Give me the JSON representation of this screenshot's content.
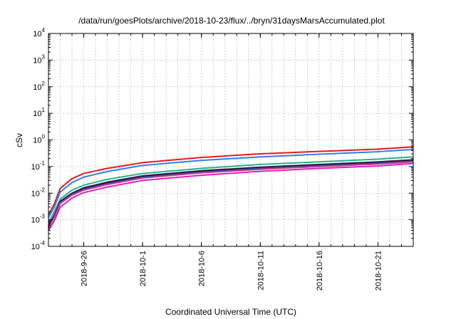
{
  "chart_data": {
    "type": "line",
    "title": "/data/run/goesPlots/archive/2018-10-23/flux/../bryn/31daysMarsAccumulated.plot",
    "xlabel": "Coordinated Universal Time (UTC)",
    "ylabel": "cSv",
    "y_scale": "log",
    "ylim": [
      0.0001,
      10000
    ],
    "xlim": [
      "2018-09-23",
      "2018-10-24"
    ],
    "grid": true,
    "x_ticks": [
      "2018-9-26",
      "2018-10-1",
      "2018-10-6",
      "2018-10-11",
      "2018-10-16",
      "2018-10-21"
    ],
    "y_ticks": [
      {
        "value": 0.0001,
        "base": "10",
        "exp": "-4"
      },
      {
        "value": 0.001,
        "base": "10",
        "exp": "-3"
      },
      {
        "value": 0.01,
        "base": "10",
        "exp": "-2"
      },
      {
        "value": 0.1,
        "base": "10",
        "exp": "-1"
      },
      {
        "value": 1,
        "base": "10",
        "exp": "0"
      },
      {
        "value": 10,
        "base": "10",
        "exp": "1"
      },
      {
        "value": 100,
        "base": "10",
        "exp": "2"
      },
      {
        "value": 1000,
        "base": "10",
        "exp": "3"
      },
      {
        "value": 10000,
        "base": "10",
        "exp": "4"
      }
    ],
    "x": [
      "2018-09-23",
      "2018-09-23T12:00",
      "2018-09-24",
      "2018-09-25",
      "2018-09-26",
      "2018-09-28",
      "2018-10-01",
      "2018-10-06",
      "2018-10-11",
      "2018-10-16",
      "2018-10-21",
      "2018-10-24"
    ],
    "series": [
      {
        "color": "#e41a1c",
        "values": [
          0.0015,
          0.004,
          0.015,
          0.035,
          0.055,
          0.085,
          0.14,
          0.22,
          0.3,
          0.37,
          0.45,
          0.55
        ]
      },
      {
        "color": "#377eeb",
        "values": [
          0.0012,
          0.003,
          0.011,
          0.025,
          0.04,
          0.065,
          0.11,
          0.17,
          0.23,
          0.29,
          0.36,
          0.44
        ]
      },
      {
        "color": "#20b58a",
        "values": [
          0.0008,
          0.002,
          0.006,
          0.013,
          0.02,
          0.033,
          0.055,
          0.085,
          0.12,
          0.15,
          0.19,
          0.23
        ]
      },
      {
        "color": "#4b2a6a",
        "values": [
          0.0006,
          0.0015,
          0.005,
          0.01,
          0.016,
          0.026,
          0.045,
          0.07,
          0.095,
          0.12,
          0.15,
          0.18
        ]
      },
      {
        "color": "#1a1a1a",
        "values": [
          0.0006,
          0.0014,
          0.0047,
          0.0095,
          0.015,
          0.025,
          0.042,
          0.066,
          0.09,
          0.115,
          0.14,
          0.17
        ]
      },
      {
        "color": "#2a3da8",
        "values": [
          0.00055,
          0.0013,
          0.0044,
          0.009,
          0.014,
          0.023,
          0.04,
          0.062,
          0.085,
          0.108,
          0.133,
          0.16
        ]
      },
      {
        "color": "#c0408a",
        "values": [
          0.0005,
          0.0012,
          0.0041,
          0.0084,
          0.013,
          0.021,
          0.037,
          0.058,
          0.079,
          0.1,
          0.124,
          0.15
        ]
      },
      {
        "color": "#e020c0",
        "values": [
          0.0004,
          0.0009,
          0.003,
          0.0065,
          0.0105,
          0.017,
          0.03,
          0.047,
          0.066,
          0.085,
          0.105,
          0.13
        ]
      }
    ]
  }
}
